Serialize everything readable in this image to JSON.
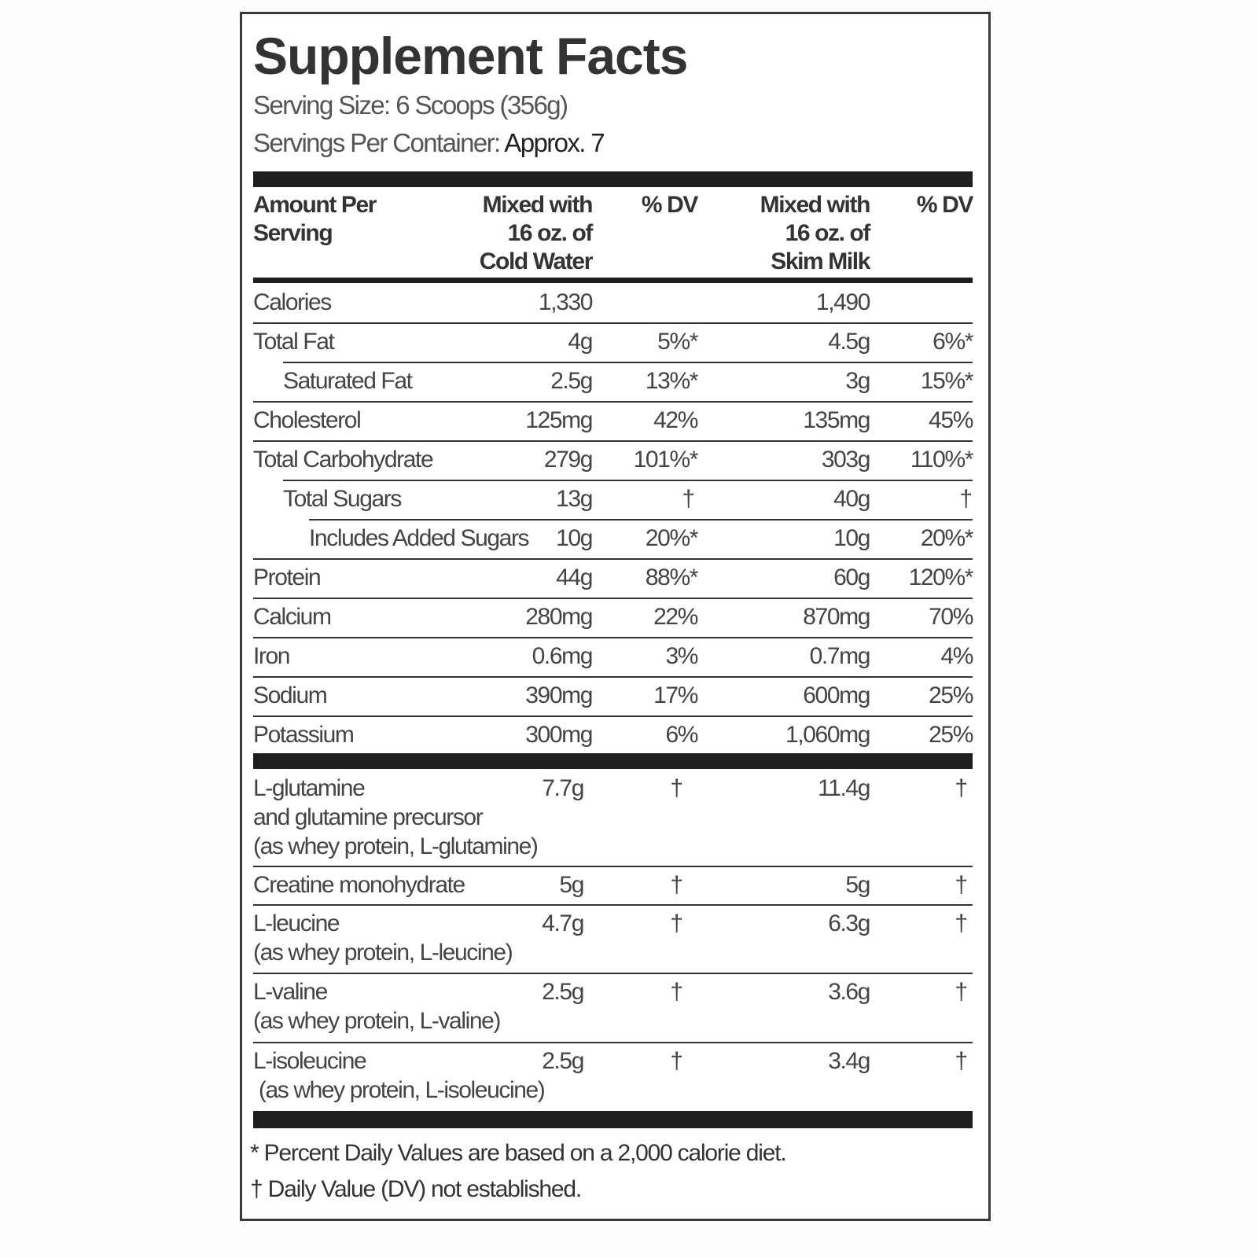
{
  "title": "Supplement Facts",
  "serving_size": "Serving Size: 6 Scoops (356g)",
  "servings_per_container_label": "Servings Per Container:",
  "servings_per_container_value": "Approx. 7",
  "columns": {
    "amount": "Amount Per\nServing",
    "water": "Mixed with\n16 oz. of\nCold Water",
    "dv1": "% DV",
    "milk": "Mixed with\n16 oz. of\nSkim Milk",
    "dv2": "% DV"
  },
  "nutrients": [
    {
      "name": "Calories",
      "indent": 0,
      "water": "1,330",
      "dv1": "",
      "milk": "1,490",
      "dv2": ""
    },
    {
      "name": "Total Fat",
      "indent": 0,
      "water": "4g",
      "dv1": "5%*",
      "milk": "4.5g",
      "dv2": "6%*"
    },
    {
      "name": "Saturated Fat",
      "indent": 1,
      "water": "2.5g",
      "dv1": "13%*",
      "milk": "3g",
      "dv2": "15%*"
    },
    {
      "name": "Cholesterol",
      "indent": 0,
      "water": "125mg",
      "dv1": "42%",
      "milk": "135mg",
      "dv2": "45%"
    },
    {
      "name": "Total Carbohydrate",
      "indent": 0,
      "water": "279g",
      "dv1": "101%*",
      "milk": "303g",
      "dv2": "110%*"
    },
    {
      "name": "Total Sugars",
      "indent": 1,
      "water": "13g",
      "dv1": "†",
      "milk": "40g",
      "dv2": "†"
    },
    {
      "name": "Includes Added Sugars",
      "indent": 2,
      "water": "10g",
      "dv1": "20%*",
      "milk": "10g",
      "dv2": "20%*"
    },
    {
      "name": "Protein",
      "indent": 0,
      "water": "44g",
      "dv1": "88%*",
      "milk": "60g",
      "dv2": "120%*"
    },
    {
      "name": "Calcium",
      "indent": 0,
      "water": "280mg",
      "dv1": "22%",
      "milk": "870mg",
      "dv2": "70%"
    },
    {
      "name": "Iron",
      "indent": 0,
      "water": "0.6mg",
      "dv1": "3%",
      "milk": "0.7mg",
      "dv2": "4%"
    },
    {
      "name": "Sodium",
      "indent": 0,
      "water": "390mg",
      "dv1": "17%",
      "milk": "600mg",
      "dv2": "25%"
    },
    {
      "name": "Potassium",
      "indent": 0,
      "water": "300mg",
      "dv1": "6%",
      "milk": "1,060mg",
      "dv2": "25%"
    }
  ],
  "supplements": [
    {
      "lines": [
        "L-glutamine",
        "and glutamine precursor",
        "(as whey protein, L-glutamine)"
      ],
      "water": "7.7g",
      "dv1": "†",
      "milk": "11.4g",
      "dv2": "†"
    },
    {
      "lines": [
        "Creatine monohydrate"
      ],
      "water": "5g",
      "dv1": "†",
      "milk": "5g",
      "dv2": "†"
    },
    {
      "lines": [
        "L-leucine",
        "(as whey protein, L-leucine)"
      ],
      "water": "4.7g",
      "dv1": "†",
      "milk": "6.3g",
      "dv2": "†"
    },
    {
      "lines": [
        "L-valine",
        "(as whey protein, L-valine)"
      ],
      "water": "2.5g",
      "dv1": "†",
      "milk": "3.6g",
      "dv2": "†"
    },
    {
      "lines": [
        "L-isoleucine",
        " (as whey protein, L-isoleucine)"
      ],
      "water": "2.5g",
      "dv1": "†",
      "milk": "3.4g",
      "dv2": "†"
    }
  ],
  "footnotes": [
    "* Percent Daily Values are based on a 2,000 calorie diet.",
    "† Daily Value (DV) not established."
  ]
}
